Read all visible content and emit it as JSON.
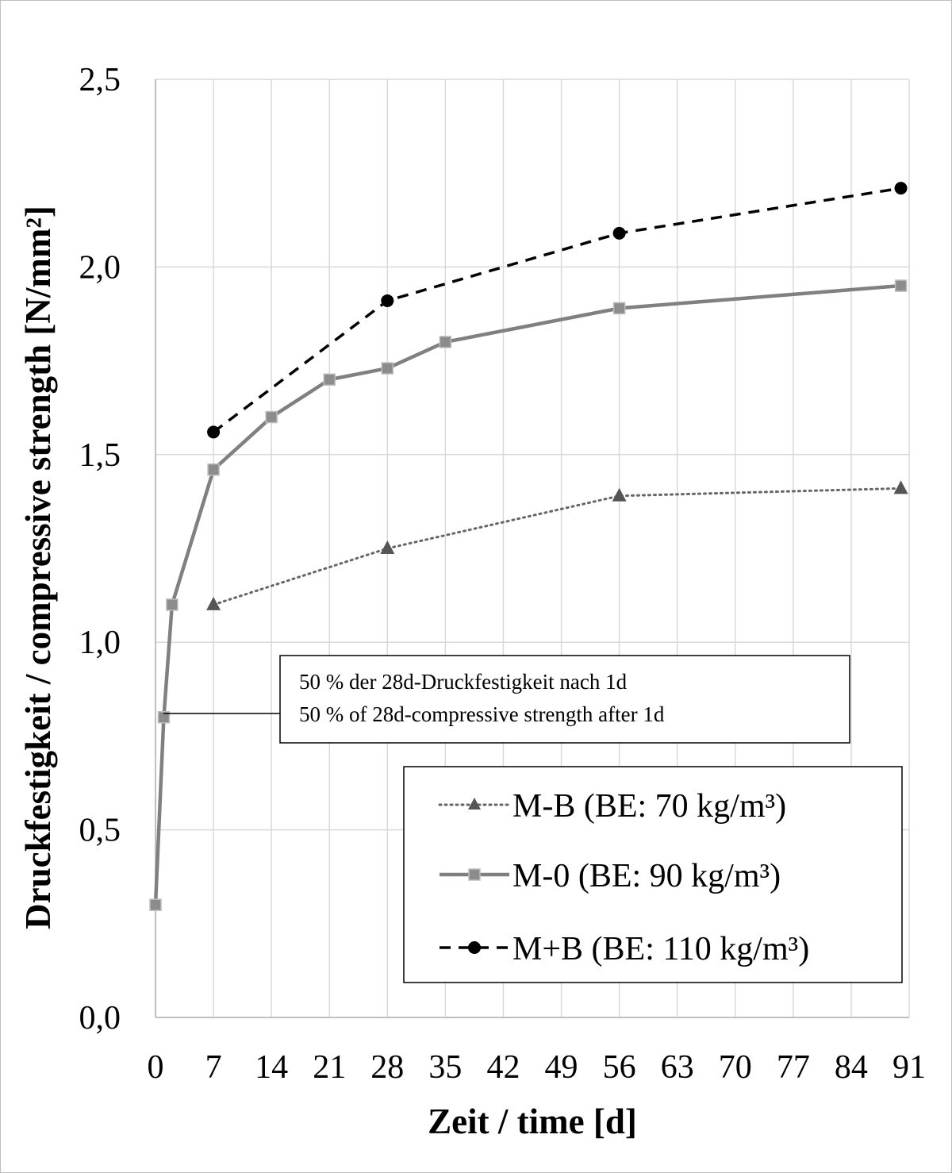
{
  "chart_data": {
    "type": "line",
    "title": "",
    "xlabel": "Zeit / time [d]",
    "ylabel": "Druckfestigkeit / compressive strength [N/mm²]",
    "xlim": [
      0,
      91
    ],
    "ylim": [
      0,
      2.5
    ],
    "x_ticks": [
      0,
      7,
      14,
      21,
      28,
      35,
      42,
      49,
      56,
      63,
      70,
      77,
      84,
      91
    ],
    "x_tick_labels": [
      "0",
      "7",
      "14",
      "21",
      "28",
      "35",
      "42",
      "49",
      "56",
      "63",
      "70",
      "77",
      "84",
      "91"
    ],
    "y_ticks": [
      0,
      0.5,
      1.0,
      1.5,
      2.0,
      2.5
    ],
    "y_tick_labels": [
      "0,0",
      "0,5",
      "1,0",
      "1,5",
      "2,0",
      "2,5"
    ],
    "grid": true,
    "legend_position": "bottom-right",
    "series": [
      {
        "name": "M-B (BE: 70 kg/m³)",
        "style": "dotted",
        "marker": "triangle",
        "color": "#666666",
        "x": [
          7,
          28,
          56,
          90
        ],
        "y": [
          1.1,
          1.25,
          1.39,
          1.41
        ]
      },
      {
        "name": "M-0 (BE: 90 kg/m³)",
        "style": "solid",
        "marker": "square",
        "color": "#808080",
        "x": [
          0,
          1,
          2,
          7,
          14,
          21,
          28,
          35,
          56,
          90
        ],
        "y": [
          0.3,
          0.8,
          1.1,
          1.46,
          1.6,
          1.7,
          1.73,
          1.8,
          1.89,
          1.95
        ]
      },
      {
        "name": "M+B (BE: 110 kg/m³)",
        "style": "dashed",
        "marker": "circle",
        "color": "#000000",
        "x": [
          7,
          28,
          56,
          90
        ],
        "y": [
          1.56,
          1.91,
          2.09,
          2.21
        ]
      }
    ],
    "annotation": {
      "lines": [
        "50 % der 28d-Druckfestigkeit nach 1d",
        "50 % of 28d-compressive strength after 1d"
      ],
      "x": 1,
      "y": 0.8
    }
  }
}
